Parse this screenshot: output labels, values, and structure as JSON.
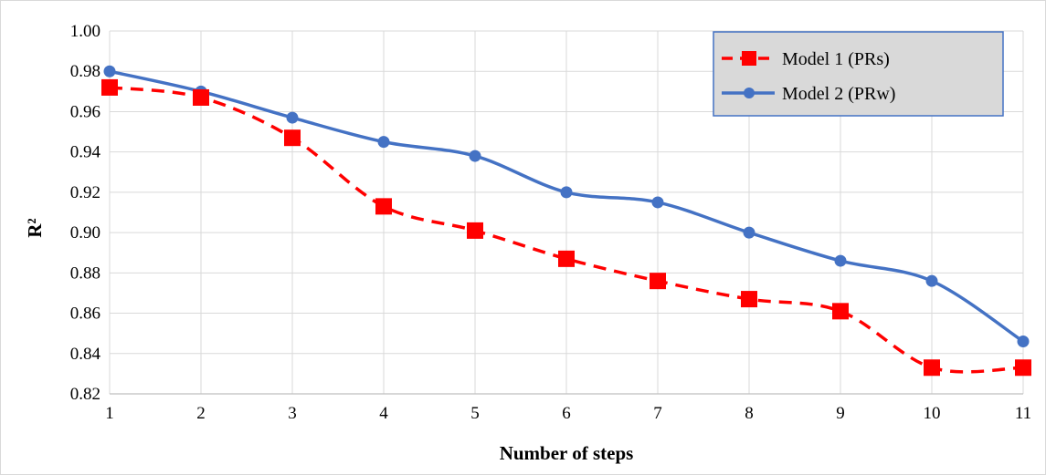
{
  "chart_data": {
    "type": "line",
    "title": "",
    "xlabel": "Number of steps",
    "ylabel": "R²",
    "categories": [
      "1",
      "2",
      "3",
      "4",
      "5",
      "6",
      "7",
      "8",
      "9",
      "10",
      "11"
    ],
    "ylim": [
      0.82,
      1.0
    ],
    "yticks": [
      "0.82",
      "0.84",
      "0.86",
      "0.88",
      "0.90",
      "0.92",
      "0.94",
      "0.96",
      "0.98",
      "1.00"
    ],
    "grid": true,
    "legend_position": "top-right",
    "series": [
      {
        "name": "Model 1 (PRs)",
        "values": [
          0.972,
          0.967,
          0.947,
          0.913,
          0.901,
          0.887,
          0.876,
          0.867,
          0.861,
          0.833,
          0.833
        ],
        "color": "#ff0000",
        "line_style": "dashed",
        "marker": "square"
      },
      {
        "name": "Model 2 (PRw)",
        "values": [
          0.98,
          0.97,
          0.957,
          0.945,
          0.938,
          0.92,
          0.915,
          0.9,
          0.886,
          0.876,
          0.846
        ],
        "color": "#4472c4",
        "line_style": "solid",
        "marker": "circle"
      }
    ]
  }
}
